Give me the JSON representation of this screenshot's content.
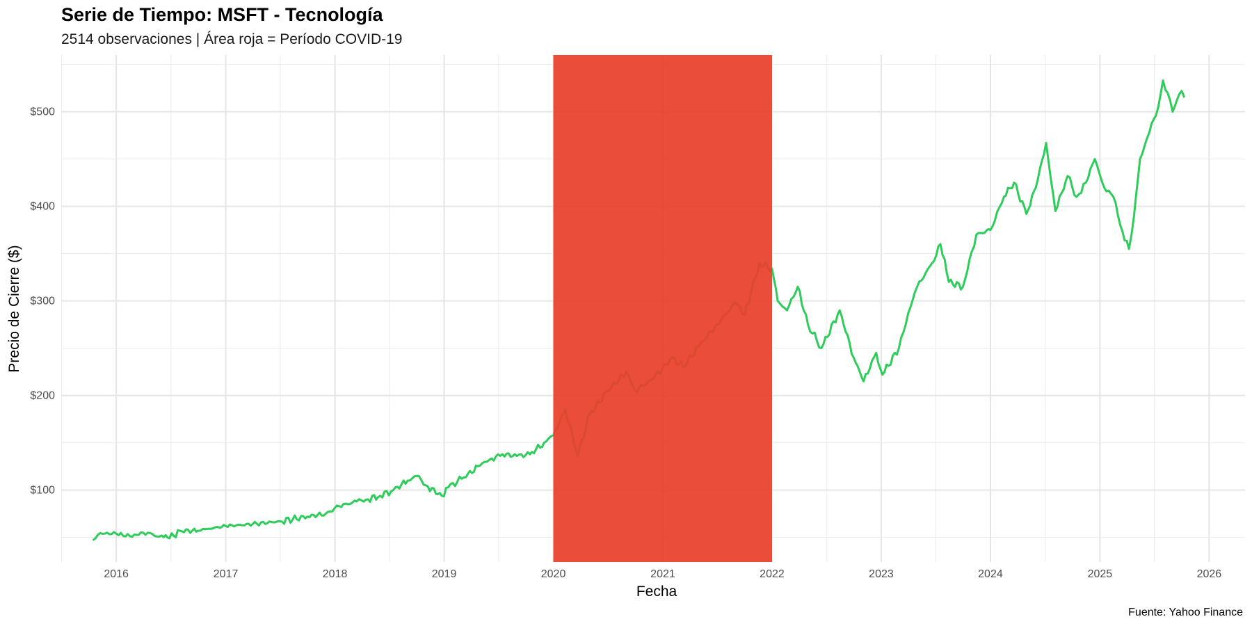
{
  "chart_data": {
    "type": "line",
    "title": "Serie de Tiempo: MSFT - Tecnología",
    "subtitle": "2514 observaciones | Área roja = Período COVID-19",
    "xlabel": "Fecha",
    "ylabel": "Precio de Cierre ($)",
    "caption": "Fuente: Yahoo Finance",
    "xlim": [
      "2015-07-01",
      "2026-05-01"
    ],
    "ylim": [
      24,
      560
    ],
    "x_ticks": [
      "2016",
      "2017",
      "2018",
      "2019",
      "2020",
      "2021",
      "2022",
      "2023",
      "2024",
      "2025",
      "2026"
    ],
    "y_ticks": [
      {
        "value": 100,
        "label": "$100"
      },
      {
        "value": 200,
        "label": "$200"
      },
      {
        "value": 300,
        "label": "$300"
      },
      {
        "value": 400,
        "label": "$400"
      },
      {
        "value": 500,
        "label": "$500"
      }
    ],
    "grid": true,
    "highlight_region": {
      "start": "2020-01-01",
      "end": "2022-01-01",
      "color": "#e8402b"
    },
    "series": [
      {
        "color": "#2ecc5a",
        "points": [
          [
            "2015-10-15",
            47
          ],
          [
            "2015-11-01",
            53
          ],
          [
            "2015-12-01",
            55
          ],
          [
            "2016-01-01",
            54
          ],
          [
            "2016-02-01",
            51
          ],
          [
            "2016-03-01",
            53
          ],
          [
            "2016-04-15",
            55
          ],
          [
            "2016-05-15",
            51
          ],
          [
            "2016-06-01",
            52
          ],
          [
            "2016-06-27",
            49
          ],
          [
            "2016-08-01",
            57
          ],
          [
            "2016-10-01",
            57
          ],
          [
            "2016-11-01",
            59
          ],
          [
            "2017-01-01",
            62
          ],
          [
            "2017-04-01",
            64
          ],
          [
            "2017-07-01",
            67
          ],
          [
            "2017-10-01",
            72
          ],
          [
            "2017-12-01",
            75
          ],
          [
            "2018-01-15",
            83
          ],
          [
            "2018-03-15",
            88
          ],
          [
            "2018-04-15",
            90
          ],
          [
            "2018-06-01",
            94
          ],
          [
            "2018-07-15",
            100
          ],
          [
            "2018-09-01",
            110
          ],
          [
            "2018-10-01",
            115
          ],
          [
            "2018-11-01",
            105
          ],
          [
            "2018-12-24",
            94
          ],
          [
            "2019-01-15",
            103
          ],
          [
            "2019-03-01",
            112
          ],
          [
            "2019-05-01",
            126
          ],
          [
            "2019-06-01",
            132
          ],
          [
            "2019-07-15",
            138
          ],
          [
            "2019-09-01",
            136
          ],
          [
            "2019-10-15",
            138
          ],
          [
            "2019-12-01",
            150
          ],
          [
            "2020-01-01",
            158
          ],
          [
            "2020-02-10",
            185
          ],
          [
            "2020-03-23",
            136
          ],
          [
            "2020-05-01",
            180
          ],
          [
            "2020-07-01",
            205
          ],
          [
            "2020-09-01",
            225
          ],
          [
            "2020-10-01",
            205
          ],
          [
            "2020-12-01",
            218
          ],
          [
            "2021-02-01",
            240
          ],
          [
            "2021-03-10",
            230
          ],
          [
            "2021-05-01",
            252
          ],
          [
            "2021-07-01",
            275
          ],
          [
            "2021-09-01",
            298
          ],
          [
            "2021-10-01",
            285
          ],
          [
            "2021-11-20",
            340
          ],
          [
            "2022-01-01",
            334
          ],
          [
            "2022-01-20",
            300
          ],
          [
            "2022-02-20",
            290
          ],
          [
            "2022-03-28",
            315
          ],
          [
            "2022-05-01",
            275
          ],
          [
            "2022-06-15",
            250
          ],
          [
            "2022-08-15",
            290
          ],
          [
            "2022-10-01",
            240
          ],
          [
            "2022-11-03",
            215
          ],
          [
            "2022-12-15",
            245
          ],
          [
            "2023-01-05",
            222
          ],
          [
            "2023-03-01",
            250
          ],
          [
            "2023-04-01",
            287
          ],
          [
            "2023-05-01",
            315
          ],
          [
            "2023-06-20",
            340
          ],
          [
            "2023-07-18",
            360
          ],
          [
            "2023-08-15",
            320
          ],
          [
            "2023-10-01",
            315
          ],
          [
            "2023-11-15",
            370
          ],
          [
            "2024-01-01",
            375
          ],
          [
            "2024-02-15",
            410
          ],
          [
            "2024-03-20",
            425
          ],
          [
            "2024-04-30",
            392
          ],
          [
            "2024-06-01",
            420
          ],
          [
            "2024-07-05",
            467
          ],
          [
            "2024-08-05",
            395
          ],
          [
            "2024-09-15",
            432
          ],
          [
            "2024-10-15",
            410
          ],
          [
            "2024-11-15",
            425
          ],
          [
            "2024-12-15",
            450
          ],
          [
            "2025-01-15",
            420
          ],
          [
            "2025-02-15",
            410
          ],
          [
            "2025-03-10",
            380
          ],
          [
            "2025-04-08",
            355
          ],
          [
            "2025-04-25",
            390
          ],
          [
            "2025-05-15",
            450
          ],
          [
            "2025-06-15",
            478
          ],
          [
            "2025-07-15",
            505
          ],
          [
            "2025-07-31",
            533
          ],
          [
            "2025-08-15",
            520
          ],
          [
            "2025-09-01",
            500
          ],
          [
            "2025-09-15",
            512
          ],
          [
            "2025-10-01",
            522
          ],
          [
            "2025-10-10",
            515
          ]
        ]
      }
    ]
  }
}
